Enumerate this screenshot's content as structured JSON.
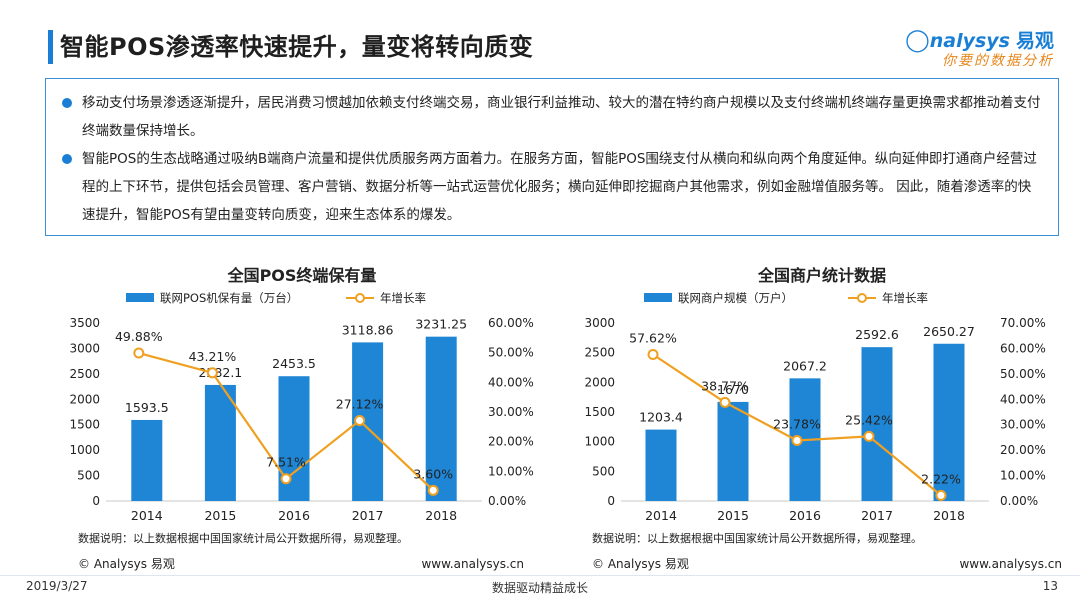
{
  "page": {
    "title": "智能POS渗透率快速提升，量变将转向质变",
    "logo_brand": "nalysys",
    "logo_brand_cn": "易观",
    "logo_slogan": "你要的数据分析",
    "bullets": [
      "移动支付场景渗透逐渐提升，居民消费习惯越加依赖支付终端交易，商业银行利益推动、较大的潜在特约商户规模以及支付终端机终端存量更换需求都推动着支付终端数量保持增长。",
      "智能POS的生态战略通过吸纳B端商户流量和提供优质服务两方面着力。在服务方面，智能POS围绕支付从横向和纵向两个角度延伸。纵向延伸即打通商户经营过程的上下环节，提供包括会员管理、客户营销、数据分析等一站式运营优化服务；横向延伸即挖掘商户其他需求，例如金融增值服务等。 因此，随着渗透率的快速提升，智能POS有望由量变转向质变，迎来生态体系的爆发。"
    ],
    "footer_date": "2019/3/27",
    "footer_center": "数据驱动精益成长",
    "footer_page": "13",
    "colors": {
      "bar": "#1f86d6",
      "line": "#f0a020",
      "accent": "#1a7fd4"
    }
  },
  "chart_data": [
    {
      "type": "bar",
      "title": "全国POS终端保有量",
      "categories": [
        "2014",
        "2015",
        "2016",
        "2017",
        "2018"
      ],
      "series": [
        {
          "name": "联网POS机保有量（万台）",
          "type": "bar",
          "axis": "left",
          "values": [
            1593.5,
            2282.1,
            2453.5,
            3118.86,
            3231.25
          ],
          "labels": [
            "1593.5",
            "2282.1",
            "2453.5",
            "3118.86",
            "3231.25"
          ]
        },
        {
          "name": "年增长率",
          "type": "line",
          "axis": "right",
          "values": [
            49.88,
            43.21,
            7.51,
            27.12,
            3.6
          ],
          "labels": [
            "49.88%",
            "43.21%",
            "7.51%",
            "27.12%",
            "3.60%"
          ]
        }
      ],
      "ylim": [
        0,
        3500
      ],
      "yticks": [
        "0",
        "500",
        "1000",
        "1500",
        "2000",
        "2500",
        "3000",
        "3500"
      ],
      "y2lim": [
        0,
        60
      ],
      "y2ticks": [
        "0.00%",
        "10.00%",
        "20.00%",
        "30.00%",
        "40.00%",
        "50.00%",
        "60.00%"
      ],
      "note": "数据说明：以上数据根据中国国家统计局公开数据所得，易观整理。",
      "copyright": "© Analysys 易观",
      "website": "www.analysys.cn",
      "legend": "top",
      "grid": false
    },
    {
      "type": "bar",
      "title": "全国商户统计数据",
      "categories": [
        "2014",
        "2015",
        "2016",
        "2017",
        "2018"
      ],
      "series": [
        {
          "name": "联网商户规模（万户）",
          "type": "bar",
          "axis": "left",
          "values": [
            1203.4,
            1670,
            2067.2,
            2592.6,
            2650.27
          ],
          "labels": [
            "1203.4",
            "1670",
            "2067.2",
            "2592.6",
            "2650.27"
          ]
        },
        {
          "name": "年增长率",
          "type": "line",
          "axis": "right",
          "values": [
            57.62,
            38.77,
            23.78,
            25.42,
            2.22
          ],
          "labels": [
            "57.62%",
            "38.77%",
            "23.78%",
            "25.42%",
            "2.22%"
          ]
        }
      ],
      "ylim": [
        0,
        3000
      ],
      "yticks": [
        "0",
        "500",
        "1000",
        "1500",
        "2000",
        "2500",
        "3000"
      ],
      "y2lim": [
        0,
        70
      ],
      "y2ticks": [
        "0.00%",
        "10.00%",
        "20.00%",
        "30.00%",
        "40.00%",
        "50.00%",
        "60.00%",
        "70.00%"
      ],
      "note": "数据说明：以上数据根据中国国家统计局公开数据所得，易观整理。",
      "copyright": "© Analysys 易观",
      "website": "www.analysys.cn",
      "legend": "top",
      "grid": false
    }
  ]
}
